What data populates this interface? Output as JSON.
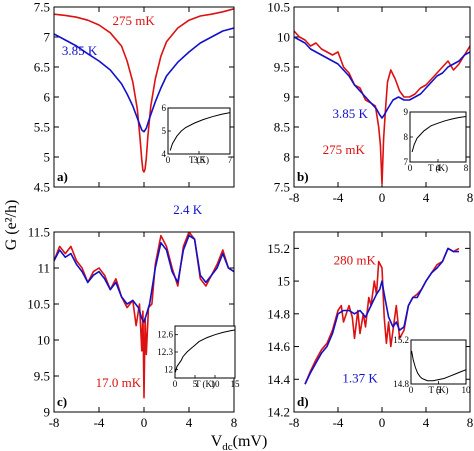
{
  "figure": {
    "ylabel": "G (e²/h)",
    "xlabel": "V",
    "xlabel_sub": "dc",
    "xlabel_unit": "(mV)"
  },
  "colors": {
    "red": "#dd1111",
    "blue": "#1111cc",
    "black": "#000000"
  },
  "chart_data": [
    {
      "type": "line",
      "panel": "a)",
      "xlim": [
        -8,
        8
      ],
      "ylim": [
        4.5,
        7.5
      ],
      "xticks": [
        -8,
        -4,
        0,
        4,
        8
      ],
      "yticks": [
        4.5,
        5,
        5.5,
        6,
        6.5,
        7,
        7.5
      ],
      "ytick_labels": [
        "4.5",
        "5",
        "5.5",
        "6",
        "6.5",
        "7",
        "7.5"
      ],
      "show_xtick_labels": false,
      "labels": [
        {
          "text": "275 mK",
          "series": "red",
          "x": -2.8,
          "y": 7.2
        },
        {
          "text": "3.85 K",
          "series": "blue",
          "x": -7.3,
          "y": 6.7
        }
      ],
      "series": [
        {
          "color": "red",
          "x": [
            -8,
            -7,
            -6,
            -5,
            -4,
            -3,
            -2,
            -1.5,
            -1,
            -0.6,
            -0.35,
            -0.2,
            -0.1,
            0,
            0.1,
            0.2,
            0.35,
            0.6,
            1,
            1.5,
            2,
            3,
            4,
            5,
            6,
            7,
            8
          ],
          "y": [
            7.38,
            7.36,
            7.33,
            7.28,
            7.2,
            7.07,
            6.85,
            6.6,
            6.25,
            5.8,
            5.3,
            4.95,
            4.78,
            4.75,
            4.8,
            4.98,
            5.35,
            5.85,
            6.3,
            6.68,
            6.92,
            7.15,
            7.28,
            7.35,
            7.38,
            7.42,
            7.47
          ]
        },
        {
          "color": "blue",
          "x": [
            -8,
            -7,
            -6,
            -5,
            -4,
            -3,
            -2,
            -1.5,
            -1,
            -0.5,
            -0.2,
            0,
            0.2,
            0.5,
            1,
            1.5,
            2,
            3,
            4,
            5,
            6,
            7,
            8
          ],
          "y": [
            7.05,
            6.95,
            6.85,
            6.72,
            6.6,
            6.45,
            6.22,
            6.05,
            5.85,
            5.6,
            5.45,
            5.42,
            5.48,
            5.65,
            5.92,
            6.15,
            6.35,
            6.58,
            6.75,
            6.9,
            7.0,
            7.1,
            7.15
          ]
        }
      ],
      "inset": {
        "xlim": [
          0,
          7
        ],
        "ylim": [
          4,
          6
        ],
        "xticks": [
          0,
          3.5,
          7
        ],
        "xtick_labels": [
          "0",
          "3.5",
          "7"
        ],
        "yticks": [
          4,
          5,
          6
        ],
        "ytick_labels": [
          "4",
          "5",
          "6"
        ],
        "xlabel": "T (K)",
        "x": [
          0.25,
          0.5,
          1,
          1.5,
          2,
          3,
          4,
          5,
          6,
          7
        ],
        "y": [
          4.15,
          4.45,
          4.78,
          5.0,
          5.15,
          5.35,
          5.5,
          5.62,
          5.72,
          5.8
        ]
      }
    },
    {
      "type": "line",
      "panel": "b)",
      "xlim": [
        -8,
        8
      ],
      "ylim": [
        7.5,
        10.5
      ],
      "xticks": [
        -8,
        -4,
        0,
        4,
        8
      ],
      "yticks": [
        7.5,
        8,
        8.5,
        9,
        9.5,
        10,
        10.5
      ],
      "ytick_labels": [
        "7.5",
        "8",
        "8.5",
        "9",
        "9.5",
        "10",
        "10.5"
      ],
      "show_xtick_labels": true,
      "xtick_labels": [
        "-8",
        "-4",
        "0",
        "4",
        "8"
      ],
      "labels": [
        {
          "text": "3.85 K",
          "series": "blue",
          "x": -4.5,
          "y": 8.65
        },
        {
          "text": "275 mK",
          "series": "red",
          "x": -5.4,
          "y": 8.05
        }
      ],
      "series": [
        {
          "color": "red",
          "x": [
            -8,
            -7.5,
            -7,
            -6.5,
            -6,
            -5.5,
            -5,
            -4.5,
            -4,
            -3.5,
            -3,
            -2.5,
            -2,
            -1.5,
            -1,
            -0.6,
            -0.3,
            -0.15,
            0,
            0.15,
            0.3,
            0.5,
            0.8,
            1.2,
            1.6,
            2,
            2.5,
            3,
            3.5,
            4,
            4.5,
            5,
            5.5,
            6,
            6.5,
            7,
            7.5,
            8
          ],
          "y": [
            10.1,
            10.0,
            9.95,
            9.85,
            9.9,
            9.8,
            9.75,
            9.7,
            9.75,
            9.5,
            9.4,
            9.2,
            9.15,
            8.95,
            8.9,
            8.85,
            8.5,
            8.2,
            7.55,
            8.3,
            8.75,
            9.25,
            9.45,
            9.3,
            9.1,
            9.0,
            9.0,
            9.05,
            9.15,
            9.2,
            9.3,
            9.4,
            9.5,
            9.6,
            9.45,
            9.55,
            9.7,
            9.85
          ]
        },
        {
          "color": "blue",
          "x": [
            -8,
            -7.5,
            -7,
            -6.5,
            -6,
            -5.5,
            -5,
            -4.5,
            -4,
            -3.5,
            -3,
            -2.5,
            -2,
            -1.5,
            -1,
            -0.5,
            -0.2,
            0,
            0.2,
            0.5,
            1,
            1.5,
            2,
            2.5,
            3,
            3.5,
            4,
            4.5,
            5,
            5.5,
            6,
            6.5,
            7,
            7.5,
            8
          ],
          "y": [
            10.0,
            9.95,
            9.9,
            9.8,
            9.75,
            9.7,
            9.65,
            9.6,
            9.55,
            9.45,
            9.35,
            9.2,
            9.1,
            9.0,
            8.9,
            8.8,
            8.7,
            8.65,
            8.7,
            8.8,
            8.95,
            9.0,
            8.95,
            8.95,
            9.0,
            9.05,
            9.15,
            9.25,
            9.35,
            9.4,
            9.5,
            9.55,
            9.6,
            9.7,
            9.75
          ]
        }
      ],
      "inset": {
        "xlim": [
          0,
          8
        ],
        "ylim": [
          7,
          9
        ],
        "xticks": [
          0,
          4,
          8
        ],
        "xtick_labels": [
          "0",
          "4",
          "8"
        ],
        "yticks": [
          7,
          8,
          9
        ],
        "ytick_labels": [
          "7",
          "8",
          "9"
        ],
        "xlabel": "T (K)",
        "x": [
          0.3,
          0.6,
          1,
          1.5,
          2,
          3,
          4,
          5,
          6,
          7,
          8
        ],
        "y": [
          7.4,
          7.7,
          7.95,
          8.1,
          8.25,
          8.45,
          8.55,
          8.65,
          8.72,
          8.78,
          8.82
        ]
      }
    },
    {
      "type": "line",
      "panel": "c)",
      "xlim": [
        -8,
        8
      ],
      "ylim": [
        9,
        11.5
      ],
      "xticks": [
        -8,
        -4,
        0,
        4,
        8
      ],
      "yticks": [
        9,
        9.5,
        10,
        10.5,
        11,
        11.5
      ],
      "ytick_labels": [
        "9",
        "9.5",
        "10",
        "10.5",
        "11",
        "11.5"
      ],
      "show_xtick_labels": true,
      "xtick_labels": [
        "-8",
        "-4",
        "0",
        "4",
        "8"
      ],
      "labels": [
        {
          "text": "2.4 K",
          "series": "blue",
          "x": 2.6,
          "y": 11.75
        },
        {
          "text": "17.0 mK",
          "series": "red",
          "x": -4.3,
          "y": 9.35
        }
      ],
      "series": [
        {
          "color": "red",
          "x": [
            -8,
            -7.5,
            -7,
            -6.5,
            -6,
            -5.5,
            -5,
            -4.5,
            -4,
            -3.5,
            -3,
            -2.5,
            -2,
            -1.5,
            -1,
            -0.7,
            -0.4,
            -0.2,
            -0.1,
            0,
            0.1,
            0.2,
            0.4,
            0.7,
            1,
            1.5,
            2,
            2.5,
            3,
            3.5,
            4,
            4.5,
            5,
            5.5,
            6,
            6.5,
            7,
            7.5,
            8
          ],
          "y": [
            11.1,
            11.3,
            11.2,
            11.3,
            11.1,
            11.0,
            10.8,
            10.95,
            11.0,
            10.9,
            10.7,
            10.85,
            10.6,
            10.45,
            10.55,
            10.2,
            10.5,
            9.85,
            10.4,
            9.2,
            10.3,
            9.8,
            10.45,
            10.5,
            11.05,
            11.45,
            11.3,
            11.0,
            10.75,
            11.3,
            11.5,
            11.4,
            10.85,
            10.75,
            10.9,
            11.05,
            11.25,
            11.0,
            10.95
          ]
        },
        {
          "color": "blue",
          "x": [
            -8,
            -7.5,
            -7,
            -6.5,
            -6,
            -5.5,
            -5,
            -4.5,
            -4,
            -3.5,
            -3,
            -2.5,
            -2,
            -1.5,
            -1,
            -0.5,
            -0.2,
            0,
            0.2,
            0.5,
            1,
            1.5,
            2,
            2.5,
            3,
            3.5,
            4,
            4.5,
            5,
            5.5,
            6,
            6.5,
            7,
            7.5,
            8
          ],
          "y": [
            11.1,
            11.25,
            11.15,
            11.2,
            11.05,
            10.95,
            10.8,
            10.9,
            10.95,
            10.85,
            10.7,
            10.8,
            10.6,
            10.5,
            10.55,
            10.45,
            10.3,
            10.25,
            10.35,
            10.5,
            11.0,
            11.35,
            11.25,
            10.95,
            10.8,
            11.25,
            11.45,
            11.4,
            10.9,
            10.8,
            10.9,
            11.0,
            11.2,
            11.0,
            10.95
          ]
        }
      ],
      "inset": {
        "xlim": [
          0,
          15
        ],
        "ylim": [
          11.85,
          12.75
        ],
        "xticks": [
          0,
          5,
          10,
          15
        ],
        "xtick_labels": [
          "0",
          "5",
          "10",
          "15"
        ],
        "yticks": [
          12,
          12.3,
          12.6
        ],
        "ytick_labels": [
          "12",
          "12.3",
          "12.6"
        ],
        "xlabel": "T (K)",
        "x": [
          0.1,
          0.5,
          1,
          1.5,
          2,
          3,
          4,
          5,
          6,
          8,
          10,
          12,
          14,
          15
        ],
        "y": [
          11.95,
          12.05,
          12.1,
          12.15,
          12.22,
          12.3,
          12.36,
          12.42,
          12.48,
          12.55,
          12.6,
          12.64,
          12.67,
          12.68
        ]
      }
    },
    {
      "type": "line",
      "panel": "d)",
      "xlim": [
        -8,
        8
      ],
      "ylim": [
        14.2,
        15.3
      ],
      "xticks": [
        -8,
        -4,
        0,
        4,
        8
      ],
      "yticks": [
        14.2,
        14.4,
        14.6,
        14.8,
        15,
        15.2
      ],
      "ytick_labels": [
        "14.2",
        "14.4",
        "14.6",
        "14.8",
        "15",
        "15.2"
      ],
      "show_xtick_labels": true,
      "xtick_labels": [
        "-8",
        "-4",
        "0",
        "4",
        "8"
      ],
      "labels": [
        {
          "text": "280 mK",
          "series": "red",
          "x": -4.4,
          "y": 15.1
        },
        {
          "text": "1.37 K",
          "series": "blue",
          "x": -3.6,
          "y": 14.38
        }
      ],
      "series": [
        {
          "color": "red",
          "x": [
            -7,
            -6.5,
            -6,
            -5.5,
            -5,
            -4.5,
            -4,
            -3.7,
            -3.5,
            -3,
            -2.7,
            -2.5,
            -2.2,
            -2,
            -1.7,
            -1.5,
            -1.2,
            -1,
            -0.7,
            -0.5,
            -0.3,
            0,
            0.2,
            0.4,
            0.6,
            0.8,
            1,
            1.3,
            1.6,
            2,
            2.4,
            2.8,
            3.2,
            3.6,
            4,
            4.5,
            5,
            5.5,
            6,
            6.5,
            7
          ],
          "y": [
            14.37,
            14.45,
            14.52,
            14.58,
            14.62,
            14.7,
            14.82,
            14.85,
            14.75,
            14.85,
            14.78,
            14.65,
            14.82,
            14.68,
            14.8,
            14.72,
            14.9,
            14.85,
            15.0,
            14.92,
            15.12,
            15.08,
            14.78,
            14.62,
            14.75,
            14.6,
            14.7,
            14.85,
            14.65,
            14.7,
            14.85,
            14.9,
            14.92,
            14.95,
            15.0,
            15.05,
            15.1,
            15.12,
            15.2,
            15.18,
            15.2
          ]
        },
        {
          "color": "blue",
          "x": [
            -7,
            -6.5,
            -6,
            -5.5,
            -5,
            -4.5,
            -4,
            -3.5,
            -3,
            -2.5,
            -2,
            -1.5,
            -1,
            -0.5,
            -0.2,
            0,
            0.2,
            0.4,
            0.6,
            0.8,
            1,
            1.3,
            1.6,
            2,
            2.4,
            2.8,
            3.2,
            3.6,
            4,
            4.5,
            5,
            5.5,
            6,
            6.5,
            7
          ],
          "y": [
            14.37,
            14.44,
            14.5,
            14.56,
            14.6,
            14.68,
            14.8,
            14.82,
            14.82,
            14.8,
            14.82,
            14.78,
            14.85,
            14.92,
            14.95,
            15.0,
            14.92,
            14.85,
            14.78,
            14.75,
            14.72,
            14.75,
            14.7,
            14.72,
            14.85,
            14.9,
            14.9,
            14.95,
            15.0,
            15.05,
            15.08,
            15.12,
            15.2,
            15.18,
            15.18
          ]
        }
      ],
      "inset": {
        "xlim": [
          0,
          10
        ],
        "ylim": [
          14.8,
          15.2
        ],
        "xticks": [
          0,
          5,
          10
        ],
        "xtick_labels": [
          "0",
          "5",
          "10"
        ],
        "yticks": [
          14.8,
          15.2
        ],
        "ytick_labels": [
          "14.8",
          "15.2"
        ],
        "xlabel": "T (K)",
        "x": [
          0.1,
          0.4,
          0.8,
          1.2,
          1.6,
          2,
          2.5,
          3,
          3.5,
          4,
          5,
          6,
          7,
          8,
          9,
          10
        ],
        "y": [
          15.1,
          15.02,
          14.95,
          14.9,
          14.87,
          14.85,
          14.84,
          14.83,
          14.83,
          14.83,
          14.84,
          14.85,
          14.87,
          14.89,
          14.91,
          14.93
        ]
      }
    }
  ]
}
